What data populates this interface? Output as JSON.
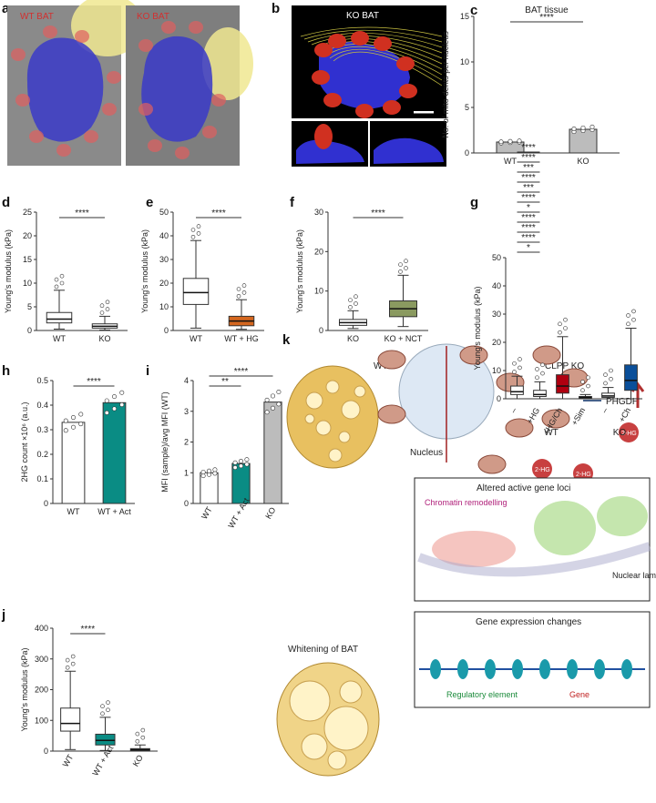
{
  "panel_letters": {
    "a": "a",
    "b": "b",
    "c": "c",
    "d": "d",
    "e": "e",
    "f": "f",
    "g": "g",
    "h": "h",
    "i": "i",
    "j": "j",
    "k": "k"
  },
  "panel_a": {
    "wt_label": "WT BAT",
    "ko_label": "KO BAT"
  },
  "panel_b": {
    "title": "KO BAT"
  },
  "colors": {
    "nucleus": "#3a3ac8",
    "mito": "#e06060",
    "lipid": "#f0e890",
    "orange": "#d4661e",
    "olive": "#8a9a60",
    "red": "#b00010",
    "blue": "#0a4f9a",
    "teal": "#0a8c84",
    "grey": "#bcbcbc"
  },
  "chart_data": [
    {
      "panel": "c",
      "type": "bar",
      "title": "BAT tissue",
      "ylabel": "No. of mito-dents per nucleus",
      "categories": [
        "WT",
        "KO"
      ],
      "values": [
        1.2,
        2.6
      ],
      "ylim": [
        0,
        15
      ],
      "yticks": [
        0,
        5,
        10,
        15
      ],
      "significance": "****"
    },
    {
      "panel": "d",
      "type": "box",
      "ylabel": "Young's modulus (kPa)",
      "categories": [
        "WT",
        "KO"
      ],
      "ylim": [
        0,
        25
      ],
      "yticks": [
        0,
        5,
        10,
        15,
        20,
        25
      ],
      "boxes": [
        {
          "min": 0.3,
          "q1": 1.6,
          "median": 2.4,
          "q3": 3.8,
          "max": 8.5
        },
        {
          "min": 0.1,
          "q1": 0.5,
          "median": 0.9,
          "q3": 1.4,
          "max": 3.0
        }
      ],
      "significance": "****"
    },
    {
      "panel": "e",
      "type": "box",
      "ylabel": "Young's modulus (kPa)",
      "categories": [
        "WT",
        "WT + HG"
      ],
      "ylim": [
        0,
        50
      ],
      "yticks": [
        0,
        10,
        20,
        30,
        40,
        50
      ],
      "boxes": [
        {
          "min": 1,
          "q1": 11,
          "median": 16,
          "q3": 22,
          "max": 38
        },
        {
          "min": 0.5,
          "q1": 2,
          "median": 4,
          "q3": 6,
          "max": 13
        }
      ],
      "significance": "****"
    },
    {
      "panel": "f",
      "type": "box",
      "ylabel": "Young's modulus (kPa)",
      "categories": [
        "KO",
        "KO + NCT"
      ],
      "ylim": [
        0,
        30
      ],
      "yticks": [
        0,
        10,
        20,
        30
      ],
      "boxes": [
        {
          "min": 0.5,
          "q1": 1.3,
          "median": 2,
          "q3": 2.8,
          "max": 5
        },
        {
          "min": 1,
          "q1": 3.5,
          "median": 5.5,
          "q3": 7.5,
          "max": 14
        }
      ],
      "significance": "****"
    },
    {
      "panel": "g",
      "type": "box",
      "ylabel": "Young's modulus (kPa)",
      "categories": [
        "–",
        "+HG",
        "+HG/Ch",
        "+Sim",
        "–",
        "+Ch"
      ],
      "groups": [
        "WT",
        "KO"
      ],
      "ylim": [
        0,
        50
      ],
      "yticks": [
        0,
        10,
        20,
        30,
        40,
        50
      ],
      "boxes": [
        {
          "min": 0,
          "q1": 1.5,
          "median": 2.5,
          "q3": 4.5,
          "max": 8
        },
        {
          "min": 0,
          "q1": 0.8,
          "median": 1.5,
          "q3": 3,
          "max": 6
        },
        {
          "min": 0,
          "q1": 2,
          "median": 4.5,
          "q3": 8.5,
          "max": 22
        },
        {
          "min": 0,
          "q1": 0.2,
          "median": 0.5,
          "q3": 0.8,
          "max": 1.5
        },
        {
          "min": 0,
          "q1": 0.5,
          "median": 1,
          "q3": 2,
          "max": 4
        },
        {
          "min": 0,
          "q1": 3,
          "median": 6.5,
          "q3": 12,
          "max": 25
        }
      ],
      "comparisons": [
        "*",
        "****",
        "****",
        "****",
        "*",
        "****",
        "***",
        "****",
        "***",
        "****",
        "****"
      ]
    },
    {
      "panel": "h",
      "type": "bar",
      "ylabel": "2HG count ×10⁶ (a.u.)",
      "categories": [
        "WT",
        "WT + Act"
      ],
      "values": [
        0.33,
        0.41
      ],
      "ylim": [
        0,
        0.5
      ],
      "yticks": [
        0,
        0.1,
        0.2,
        0.3,
        0.4,
        0.5
      ],
      "significance": "****"
    },
    {
      "panel": "i",
      "type": "bar",
      "ylabel": "MFI (sample)/avg MFI (WT)",
      "categories": [
        "WT",
        "WT + Act",
        "KO"
      ],
      "values": [
        1.0,
        1.3,
        3.3
      ],
      "ylim": [
        0,
        4
      ],
      "yticks": [
        0,
        1,
        2,
        3,
        4
      ],
      "significance": [
        "**",
        "****"
      ]
    },
    {
      "panel": "j",
      "type": "box",
      "ylabel": "Young's modulus (kPa)",
      "categories": [
        "WT",
        "WT + Act",
        "KO"
      ],
      "ylim": [
        0,
        400
      ],
      "yticks": [
        0,
        100,
        200,
        300,
        400
      ],
      "boxes": [
        {
          "min": 5,
          "q1": 65,
          "median": 90,
          "q3": 140,
          "max": 260
        },
        {
          "min": 2,
          "q1": 20,
          "median": 35,
          "q3": 55,
          "max": 110
        },
        {
          "min": 0,
          "q1": 2,
          "median": 5,
          "q3": 8,
          "max": 20
        }
      ],
      "significance": "****"
    }
  ],
  "panel_k": {
    "wt": "WT",
    "ko": "CLPP KO",
    "phgdh": "PHGDH",
    "nucleus": "Nucleus",
    "two_hg": "2-HG",
    "altered": "Altered active gene loci",
    "chromatin": "Chromatin remodelling",
    "nuclear_lamina": "Nuclear lamina",
    "whitening": "Whitening of BAT",
    "gene_expr": "Gene expression changes",
    "reg_element": "Regulatory element",
    "gene": "Gene"
  }
}
